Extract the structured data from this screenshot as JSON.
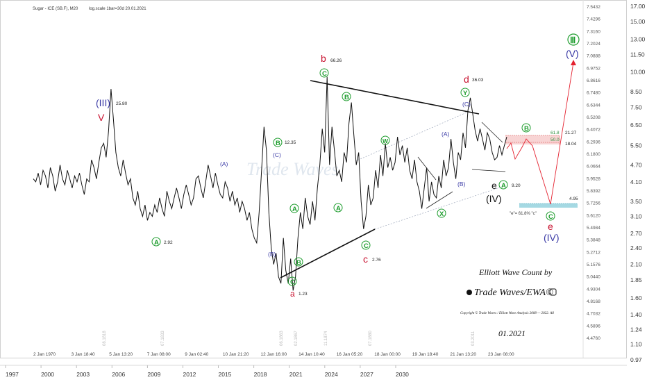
{
  "header": {
    "title": "Sugar - ICE (SB.F), M20",
    "scale_info": "log.scale 1bar=30d 20.01.2021"
  },
  "right_axis_inner": [
    "7.5432",
    "7.4296",
    "7.3160",
    "7.2024",
    "7.0888",
    "6.9752",
    "6.8616",
    "6.7480",
    "6.6344",
    "6.5208",
    "6.4072",
    "6.2936",
    "6.1800",
    "6.0664",
    "5.9528",
    "5.8392",
    "5.7256",
    "5.6120",
    "5.4984",
    "5.3848",
    "5.2712",
    "5.1576",
    "5.0440",
    "4.9304",
    "4.8168",
    "4.7032",
    "4.5896",
    "4.4760"
  ],
  "right_axis_outer": [
    "17.00",
    "15.00",
    "13.00",
    "11.50",
    "10.00",
    "8.50",
    "7.50",
    "6.50",
    "5.50",
    "4.70",
    "4.10",
    "3.50",
    "3.10",
    "2.70",
    "2.40",
    "2.10",
    "1.85",
    "1.60",
    "1.40",
    "1.24",
    "1.10",
    "0.97"
  ],
  "bottom_axis_inner": [
    "2 Jan 1970",
    "3 Jan 18:40",
    "5 Jan 13:20",
    "7 Jan 08:00",
    "9 Jan 02:40",
    "10 Jan 21:20",
    "12 Jan 16:00",
    "14 Jan 10:40",
    "16 Jan 05:20",
    "18 Jan 00:00",
    "19 Jan 18:40",
    "21 Jan 13:20",
    "23 Jan 08:00"
  ],
  "bottom_axis_outer": [
    "1997",
    "2000",
    "2003",
    "2006",
    "2009",
    "2012",
    "2015",
    "2018",
    "2021",
    "2024",
    "2027",
    "2030"
  ],
  "vertical_dates": [
    "08.1818",
    "07.1833",
    "06.1863",
    "02.1867",
    "11.1874",
    "07.1880",
    "03.2011"
  ],
  "price_labels": {
    "v3": "25.80",
    "a1": "2.92",
    "b1": "12.35",
    "c1": "1.23",
    "b2": "66.26",
    "c2": "2.76",
    "d": "36.03",
    "e": "9.20",
    "fib618": "61.8",
    "fib500": "50.0",
    "p2127": "21.27",
    "p1804": "18.04",
    "p495": "4.95"
  },
  "wave_labels": {
    "roman_iii": "(III)",
    "roman_iv": "(IV)",
    "roman_iv_target": "(IV)",
    "roman_v": "(V)",
    "circle_iii": "Ⅲ",
    "v": "V",
    "b": "b",
    "c": "c",
    "d": "d",
    "e": "e",
    "e_target": "e",
    "A": "A",
    "B": "B",
    "C": "C",
    "W": "W",
    "X": "X",
    "Y": "Y",
    "pA": "(A)",
    "pB": "(B)",
    "pC": "(C)"
  },
  "annotation": "\"e\"= 61.8% \"c\"",
  "branding": {
    "title": "Elliott Wave Count by",
    "name": "Trade Waves/EWA©",
    "copyright": "Copyright © Trade Waves / Elliott Wave Analysis 2008 — 2022. All",
    "date": "01.2021",
    "watermark": "Trade Waves"
  },
  "colors": {
    "green": "#1c9c2c",
    "navy": "#3a3aa6",
    "red": "#c8102e",
    "line": "#111111",
    "fib_zone": "#f6c9c9",
    "target_zone": "#8fd0dc"
  },
  "chart_data": {
    "type": "line",
    "title": "Sugar - ICE (SB.F), M20",
    "y_scale": "log",
    "y_range": [
      0.97,
      17.0
    ],
    "series": [
      {
        "values": [
          4.2,
          4.1,
          4.4,
          4.0,
          4.5,
          4.3,
          3.9,
          4.6,
          4.3,
          3.8,
          4.1,
          4.7,
          4.2,
          4.0,
          4.5,
          4.2,
          3.9,
          4.3,
          4.1,
          4.4,
          4.0,
          3.7,
          4.2,
          4.1,
          4.9,
          4.6,
          4.2,
          4.8,
          5.4,
          5.6,
          5.0,
          6.2,
          8.7,
          6.8,
          5.2,
          4.6,
          4.3,
          4.9,
          4.4,
          4.0,
          4.2,
          3.6,
          3.4,
          3.8,
          3.3,
          3.1,
          3.4,
          3.0,
          3.2,
          3.1,
          3.4,
          3.2,
          3.6,
          3.3,
          3.1,
          3.8,
          3.5,
          3.3,
          3.6,
          3.9,
          3.6,
          3.3,
          3.7,
          4.0,
          3.7,
          3.4,
          3.6,
          4.2,
          4.3,
          3.9,
          3.6,
          4.1,
          4.7,
          4.3,
          3.9,
          4.4,
          4.0,
          3.7,
          3.6,
          4.1,
          3.9,
          3.5,
          3.8,
          3.4,
          3.6,
          3.2,
          3.5,
          3.3,
          3.0,
          3.2,
          2.8,
          2.6,
          2.5,
          3.2,
          4.5,
          6.4,
          5.3,
          3.2,
          2.4,
          2.1,
          2.3,
          1.9,
          1.8,
          2.6,
          2.0,
          1.8,
          2.2,
          1.7,
          1.9,
          2.6,
          3.2,
          2.8,
          3.6,
          3.1,
          2.9,
          3.5,
          3.0,
          3.9,
          4.7,
          6.3,
          5.2,
          9.6,
          4.7,
          6.4,
          5.3,
          4.3,
          4.5,
          4.1,
          5.2,
          4.8,
          6.6,
          7.8,
          6.0,
          4.7,
          5.2,
          3.5,
          2.8,
          3.1,
          4.0,
          3.4,
          3.6,
          4.5,
          3.9,
          5.1,
          4.3,
          5.6,
          4.6,
          5.0,
          4.5,
          4.8,
          5.9,
          5.1,
          5.5,
          4.8,
          5.4,
          4.5,
          4.2,
          4.9,
          4.1,
          3.8,
          3.3,
          3.9,
          4.6,
          3.5,
          4.1,
          3.7,
          3.6,
          4.3,
          3.9,
          4.9,
          4.3,
          4.6,
          5.8,
          4.8,
          4.2,
          5.2,
          4.9,
          6.1,
          5.4,
          7.3,
          8.1,
          7.1,
          6.2,
          5.7,
          6.3,
          5.8,
          5.3,
          6.1,
          5.8,
          5.2,
          4.9,
          5.0,
          5.5,
          5.1,
          5.5,
          5.9
        ]
      }
    ]
  }
}
